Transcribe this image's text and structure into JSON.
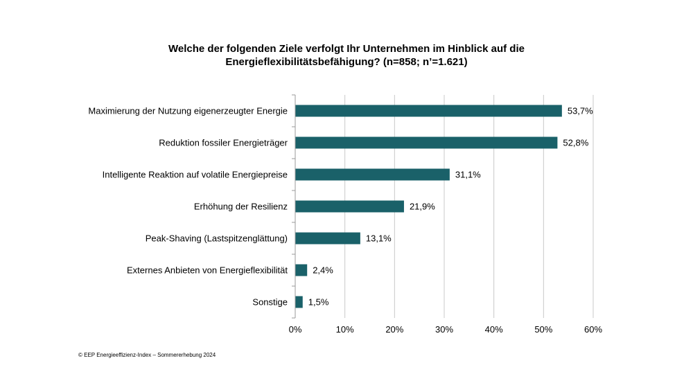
{
  "chart_data": {
    "type": "bar",
    "orientation": "horizontal",
    "title_lines": [
      "Welche der folgenden Ziele verfolgt Ihr Unternehmen im Hinblick auf die",
      "Energieflexibilitätsbefähigung? (n=858; n’=1.621)"
    ],
    "categories": [
      "Maximierung der Nutzung eigenerzeugter Energie",
      "Reduktion fossiler Energieträger",
      "Intelligente Reaktion auf volatile Energiepreise",
      "Erhöhung der Resilienz",
      "Peak-Shaving (Lastspitzenglättung)",
      "Externes Anbieten von Energieflexibilität",
      "Sonstige"
    ],
    "values": [
      53.7,
      52.8,
      31.1,
      21.9,
      13.1,
      2.4,
      1.5
    ],
    "value_labels": [
      "53,7%",
      "52,8%",
      "31,1%",
      "21,9%",
      "13,1%",
      "2,4%",
      "1,5%"
    ],
    "xlim": [
      0,
      60
    ],
    "xticks": [
      0,
      10,
      20,
      30,
      40,
      50,
      60
    ],
    "xtick_labels": [
      "0%",
      "10%",
      "20%",
      "30%",
      "40%",
      "50%",
      "60%"
    ],
    "grid": true,
    "bar_color": "#1a6169",
    "grid_color": "#c8c8c8"
  },
  "footer": {
    "source": "© EEP Energieeffizienz-Index – Sommererhebung 2024"
  }
}
